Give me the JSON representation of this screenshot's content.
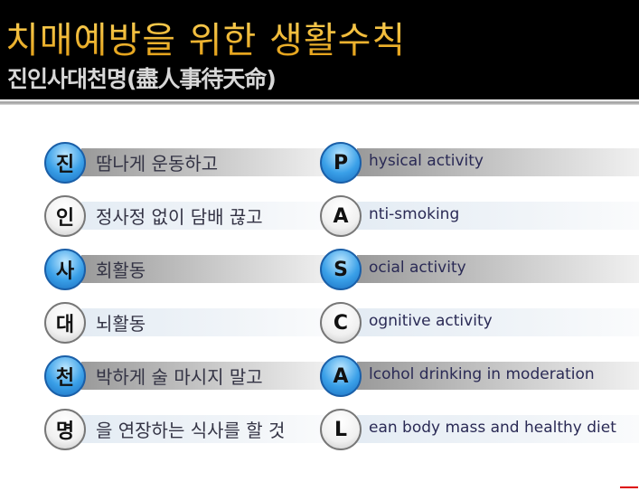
{
  "header": {
    "title": "치매예방을 위한 생활수칙",
    "subtitle": "진인사대천명(盡人事待天命)"
  },
  "rows": [
    {
      "kr_letter": "진",
      "kr_text": "땀나게 운동하고",
      "en_letter": "P",
      "en_text": "hysical activity",
      "style": "blue"
    },
    {
      "kr_letter": "인",
      "kr_text": "정사정 없이 담배 끊고",
      "en_letter": "A",
      "en_text": "nti-smoking",
      "style": "plain"
    },
    {
      "kr_letter": "사",
      "kr_text": "회활동",
      "en_letter": "S",
      "en_text": "ocial activity",
      "style": "blue"
    },
    {
      "kr_letter": "대",
      "kr_text": "뇌활동",
      "en_letter": "C",
      "en_text": "ognitive activity",
      "style": "plain"
    },
    {
      "kr_letter": "천",
      "kr_text": "박하게 술 마시지 말고",
      "en_letter": "A",
      "en_text": "lcohol drinking in moderation",
      "style": "blue"
    },
    {
      "kr_letter": "명",
      "kr_text": "을 연장하는 식사를 할 것",
      "en_letter": "L",
      "en_text": "ean body mass and healthy diet",
      "style": "plain"
    }
  ],
  "colors": {
    "title": "#f0b020",
    "circle_blue": "#3aa0e8",
    "text": "#2a2a55"
  }
}
